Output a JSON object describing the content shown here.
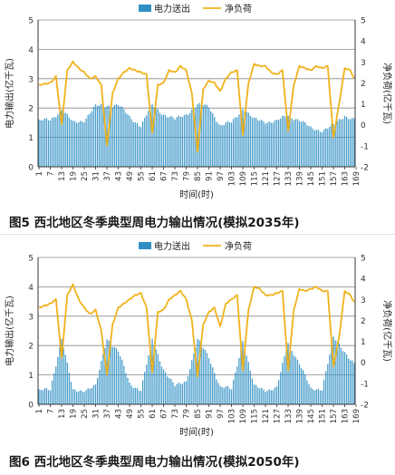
{
  "colors": {
    "bar": "#2f8fc4",
    "line": "#f0b21b",
    "grid": "#888888",
    "axis": "#333333"
  },
  "chart_data": [
    {
      "type": "bar",
      "legend": [
        "电力送出",
        "净负荷"
      ],
      "ylabel_left": "电力输出(亿千瓦)",
      "ylabel_right": "净负荷(亿千瓦)",
      "xlabel": "时间(时)",
      "ylim_left": [
        0,
        5
      ],
      "ylim_right": [
        -2,
        5
      ],
      "yticks_left": [
        "0",
        "1",
        "2",
        "3",
        "4",
        "5"
      ],
      "yticks_right": [
        "-2",
        "-1",
        "0",
        "1",
        "2",
        "3",
        "4",
        "5"
      ],
      "xticks": [
        "1",
        "7",
        "13",
        "19",
        "25",
        "31",
        "37",
        "43",
        "49",
        "55",
        "61",
        "67",
        "73",
        "79",
        "85",
        "91",
        "97",
        "103",
        "109",
        "115",
        "121",
        "127",
        "133",
        "139",
        "145",
        "151",
        "157",
        "163",
        "169"
      ],
      "legend_position": "top-center",
      "grid": "horizontal",
      "caption": "图5   西北地区冬季典型周电力输出情况(模拟2035年)",
      "series": [
        {
          "name": "电力送出",
          "hours": [
            1,
            7,
            13,
            19,
            25,
            31,
            37,
            43,
            49,
            55,
            61,
            67,
            73,
            79,
            85,
            91,
            97,
            103,
            109,
            115,
            121,
            127,
            133,
            139,
            145,
            151,
            157,
            163,
            169
          ],
          "values": [
            1.55,
            1.6,
            1.95,
            1.5,
            1.6,
            2.05,
            2.1,
            2.1,
            1.7,
            1.4,
            2.1,
            1.8,
            1.6,
            1.8,
            2.1,
            2.05,
            1.4,
            1.5,
            2.0,
            1.6,
            1.55,
            1.55,
            1.75,
            1.6,
            1.3,
            1.25,
            1.4,
            1.75,
            1.6
          ]
        },
        {
          "name": "净负荷",
          "hours": [
            1,
            7,
            10,
            13,
            16,
            19,
            22,
            25,
            28,
            31,
            34,
            37,
            40,
            43,
            46,
            49,
            52,
            55,
            58,
            61,
            64,
            67,
            70,
            73,
            76,
            79,
            82,
            85,
            88,
            91,
            94,
            97,
            100,
            103,
            106,
            109,
            112,
            115,
            118,
            121,
            124,
            127,
            130,
            133,
            136,
            139,
            142,
            145,
            148,
            151,
            154,
            157,
            160,
            163,
            166,
            169
          ],
          "values": [
            1.9,
            2.0,
            2.3,
            0.0,
            2.6,
            3.0,
            2.7,
            2.5,
            2.2,
            2.3,
            1.9,
            -1.0,
            1.5,
            2.2,
            2.5,
            2.7,
            2.6,
            2.5,
            2.4,
            -0.4,
            1.9,
            2.0,
            2.6,
            2.5,
            2.8,
            2.6,
            1.5,
            -1.3,
            1.7,
            2.1,
            2.0,
            1.6,
            2.2,
            2.5,
            2.6,
            -0.5,
            2.0,
            2.9,
            2.8,
            2.8,
            2.5,
            2.4,
            2.6,
            -0.3,
            1.9,
            2.8,
            2.7,
            2.6,
            2.8,
            2.7,
            2.8,
            -0.6,
            1.0,
            2.7,
            2.6,
            2.0
          ]
        }
      ]
    },
    {
      "type": "bar",
      "legend": [
        "电力送出",
        "净负荷"
      ],
      "ylabel_left": "电力输出(亿千瓦)",
      "ylabel_right": "净负荷(亿千瓦)",
      "xlabel": "时间(时)",
      "ylim_left": [
        0,
        5
      ],
      "ylim_right": [
        -2,
        5
      ],
      "yticks_left": [
        "0",
        "1",
        "2",
        "3",
        "4",
        "5"
      ],
      "yticks_right": [
        "-2",
        "-1",
        "0",
        "1",
        "2",
        "3",
        "4",
        "5"
      ],
      "xticks": [
        "1",
        "7",
        "13",
        "19",
        "25",
        "31",
        "37",
        "43",
        "49",
        "55",
        "61",
        "67",
        "73",
        "79",
        "85",
        "91",
        "97",
        "103",
        "109",
        "115",
        "121",
        "127",
        "133",
        "139",
        "145",
        "151",
        "157",
        "163",
        "169"
      ],
      "legend_position": "top-center",
      "grid": "horizontal",
      "caption": "图6   西北地区冬季典型周电力输出情况(模拟2050年)",
      "series": [
        {
          "name": "电力送出",
          "hours": [
            1,
            7,
            13,
            19,
            25,
            31,
            37,
            43,
            49,
            55,
            61,
            67,
            73,
            79,
            85,
            91,
            97,
            103,
            109,
            115,
            121,
            127,
            133,
            139,
            145,
            151,
            157,
            163,
            169
          ],
          "values": [
            0.45,
            0.5,
            2.25,
            0.45,
            0.5,
            0.6,
            2.25,
            1.8,
            0.7,
            0.5,
            2.2,
            1.2,
            0.6,
            0.8,
            2.2,
            1.6,
            0.6,
            0.5,
            2.2,
            0.6,
            0.5,
            0.55,
            2.1,
            1.4,
            0.5,
            0.55,
            2.25,
            1.8,
            1.3
          ]
        },
        {
          "name": "净负荷",
          "hours": [
            1,
            7,
            10,
            13,
            16,
            19,
            22,
            25,
            28,
            31,
            34,
            37,
            40,
            43,
            46,
            49,
            52,
            55,
            58,
            61,
            64,
            67,
            70,
            73,
            76,
            79,
            82,
            85,
            88,
            91,
            94,
            97,
            100,
            103,
            106,
            109,
            112,
            115,
            118,
            121,
            124,
            127,
            130,
            133,
            136,
            139,
            142,
            145,
            148,
            151,
            154,
            157,
            160,
            163,
            166,
            169
          ],
          "values": [
            2.6,
            2.8,
            3.0,
            0.2,
            3.2,
            3.7,
            3.0,
            2.6,
            2.3,
            2.5,
            1.5,
            -0.6,
            1.8,
            2.6,
            2.8,
            3.0,
            3.2,
            3.3,
            2.6,
            -0.5,
            2.4,
            2.5,
            3.0,
            3.2,
            3.4,
            3.0,
            2.0,
            -0.7,
            1.8,
            2.4,
            2.6,
            1.7,
            2.8,
            3.0,
            3.2,
            -0.4,
            2.5,
            3.6,
            3.5,
            3.2,
            3.2,
            3.3,
            3.4,
            -0.4,
            2.5,
            3.5,
            3.4,
            3.5,
            3.6,
            3.4,
            3.4,
            -0.2,
            1.2,
            3.4,
            3.2,
            2.7
          ]
        }
      ]
    }
  ]
}
